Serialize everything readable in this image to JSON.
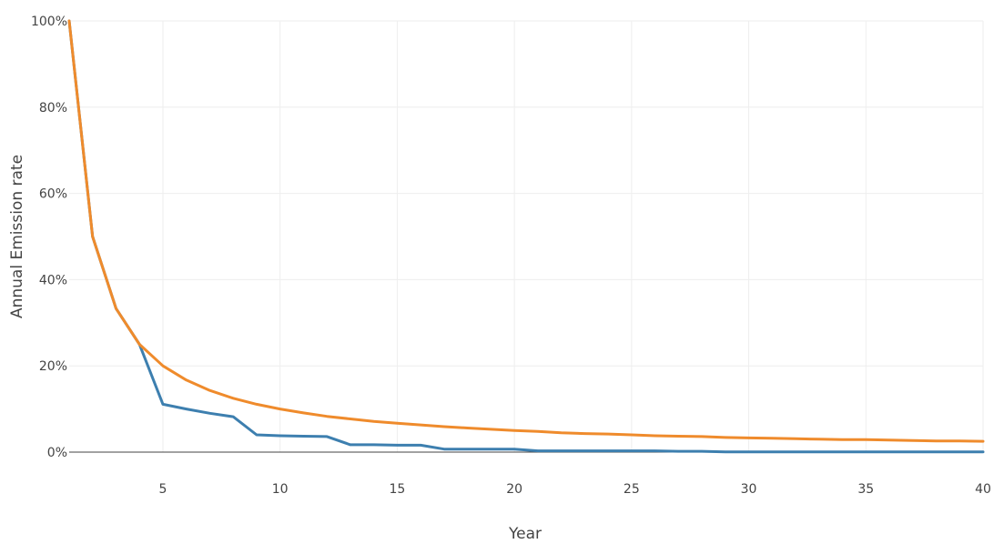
{
  "chart_data": {
    "type": "line",
    "title": "",
    "xlabel": "Year",
    "ylabel": "Annual Emission rate",
    "xlim": [
      1,
      40
    ],
    "ylim": [
      0,
      1
    ],
    "x_ticks": [
      5,
      10,
      15,
      20,
      25,
      30,
      35,
      40
    ],
    "y_ticks": [
      0,
      0.2,
      0.4,
      0.6,
      0.8,
      1.0
    ],
    "y_tick_labels": [
      "0%",
      "20%",
      "40%",
      "60%",
      "80%",
      "100%"
    ],
    "grid": true,
    "legend": "none",
    "series": [
      {
        "color": "#3d7faf",
        "x": [
          1,
          2,
          3,
          4,
          5,
          6,
          7,
          8,
          9,
          10,
          11,
          12,
          13,
          14,
          15,
          16,
          17,
          18,
          19,
          20,
          21,
          22,
          23,
          24,
          25,
          26,
          27,
          28,
          29,
          30,
          31,
          32,
          33,
          34,
          35,
          36,
          37,
          38,
          39,
          40
        ],
        "values": [
          1.0,
          0.5,
          0.333,
          0.25,
          0.111,
          0.1,
          0.09,
          0.082,
          0.04,
          0.038,
          0.037,
          0.036,
          0.017,
          0.017,
          0.016,
          0.016,
          0.007,
          0.007,
          0.007,
          0.007,
          0.003,
          0.003,
          0.003,
          0.003,
          0.003,
          0.003,
          0.002,
          0.002,
          0.0005,
          0.0005,
          0.0005,
          0.0005,
          0.0005,
          0.0005,
          0.0005,
          0.0005,
          0.0005,
          0.0005,
          0.0005,
          0.0005
        ]
      },
      {
        "color": "#ef8b2c",
        "x": [
          1,
          2,
          3,
          4,
          5,
          6,
          7,
          8,
          9,
          10,
          11,
          12,
          13,
          14,
          15,
          16,
          17,
          18,
          19,
          20,
          21,
          22,
          23,
          24,
          25,
          26,
          27,
          28,
          29,
          30,
          31,
          32,
          33,
          34,
          35,
          36,
          37,
          38,
          39,
          40
        ],
        "values": [
          1.0,
          0.5,
          0.333,
          0.25,
          0.2,
          0.167,
          0.143,
          0.125,
          0.111,
          0.1,
          0.091,
          0.083,
          0.077,
          0.071,
          0.067,
          0.063,
          0.059,
          0.056,
          0.053,
          0.05,
          0.048,
          0.045,
          0.043,
          0.042,
          0.04,
          0.038,
          0.037,
          0.036,
          0.034,
          0.033,
          0.032,
          0.031,
          0.03,
          0.029,
          0.029,
          0.028,
          0.027,
          0.026,
          0.026,
          0.025
        ]
      }
    ]
  }
}
